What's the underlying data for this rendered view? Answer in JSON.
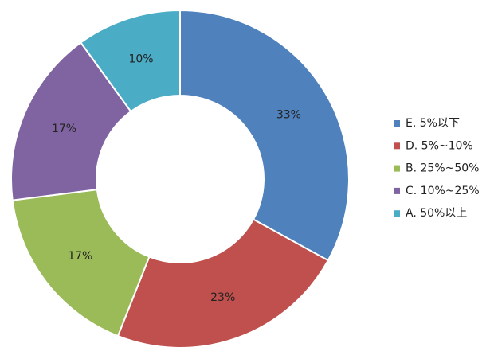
{
  "chart_data": {
    "type": "donut",
    "categories": [
      "E. 5%以下",
      "D. 5%~10%",
      "B. 25%~50%",
      "C. 10%~25%",
      "A. 50%以上"
    ],
    "values": [
      33,
      23,
      17,
      17,
      10
    ],
    "value_labels": [
      "33%",
      "23%",
      "17%",
      "17%",
      "10%"
    ],
    "colors": [
      "#4f81bd",
      "#c0504d",
      "#9bbb59",
      "#8064a2",
      "#4bacc6"
    ],
    "legend": "right"
  }
}
